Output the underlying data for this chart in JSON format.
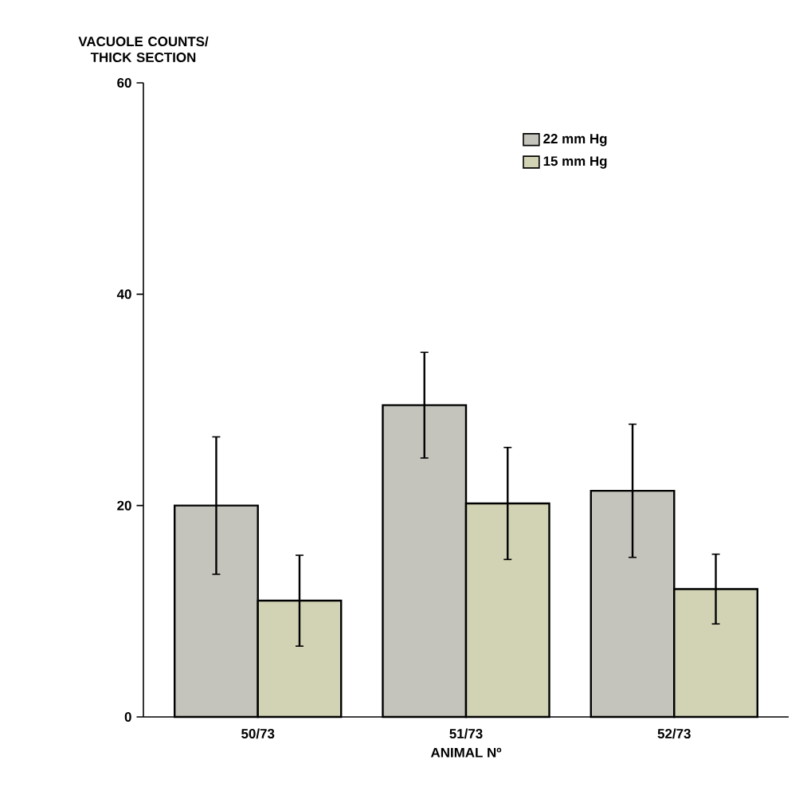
{
  "chart_data": {
    "type": "bar",
    "xlabel": "ANIMAL Nº",
    "ylabel": "VACUOLE COUNTS/ THICK SECTION",
    "categories": [
      "50/73",
      "51/73",
      "52/73"
    ],
    "series": [
      {
        "name": "22 mm Hg",
        "color": "#c4c4bc",
        "values": [
          20,
          29.5,
          21.4
        ],
        "errors": [
          6.5,
          5,
          6.3
        ]
      },
      {
        "name": "15 mm Hg",
        "color": "#d2d2b4",
        "values": [
          11,
          20.2,
          12.1
        ],
        "errors": [
          4.3,
          5.3,
          3.3
        ]
      }
    ],
    "ylim": [
      0,
      60
    ],
    "yticks": [
      0,
      20,
      40,
      60
    ],
    "grid": false,
    "legend": "top right"
  }
}
